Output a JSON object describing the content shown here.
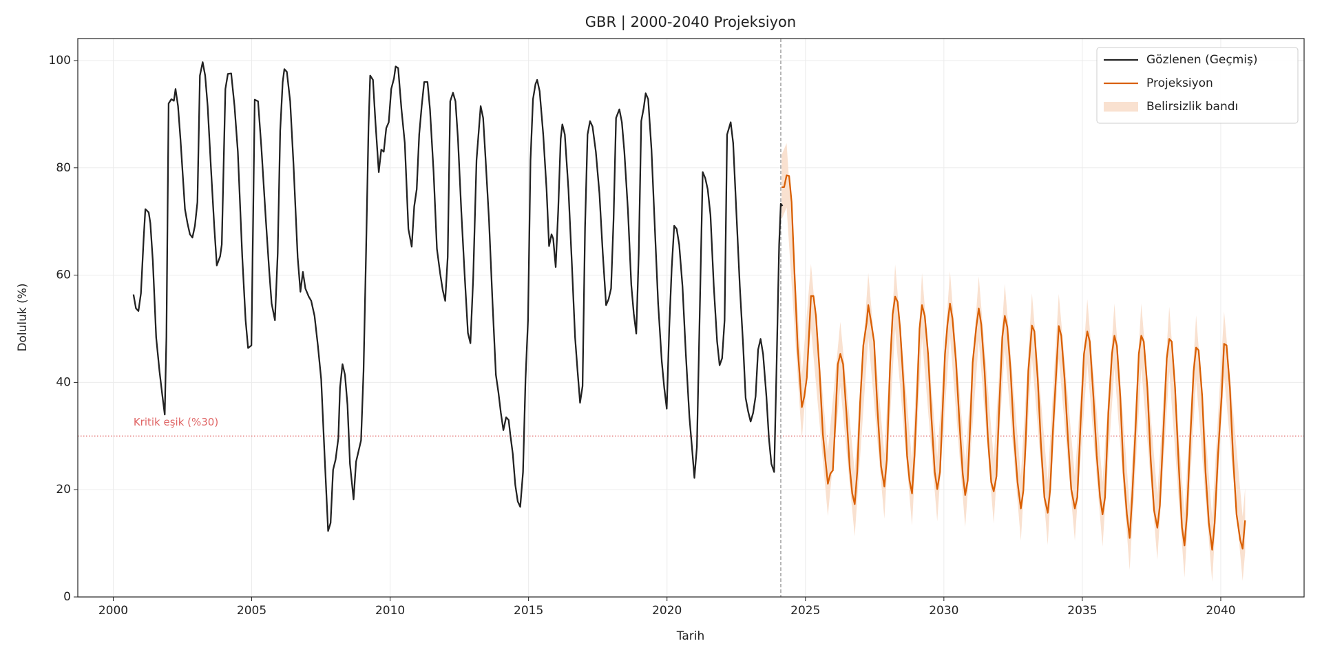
{
  "chart_data": {
    "type": "line",
    "title": "GBR | 2000-2040 Projeksiyon",
    "xlabel": "Tarih",
    "ylabel": "Doluluk (%)",
    "xlim": [
      1998.72,
      2043.01
    ],
    "ylim": [
      0,
      104.1
    ],
    "xticks": [
      2000,
      2005,
      2010,
      2015,
      2020,
      2025,
      2030,
      2035,
      2040
    ],
    "yticks": [
      0,
      20,
      40,
      60,
      80,
      100
    ],
    "grid": true,
    "legend": "upper right",
    "threshold": 30,
    "threshold_color": "#e06666",
    "threshold_label": "Kritik eşik (%30)",
    "split_x": 2024.11,
    "series": [
      {
        "name": "Gözlenen (Geçmiş)",
        "color": "#222222",
        "x": [
          2000.73,
          2000.82,
          2000.91,
          2001.0,
          2001.1,
          2001.16,
          2001.28,
          2001.34,
          2001.43,
          2001.55,
          2001.67,
          2001.77,
          2001.86,
          2001.92,
          2002.0,
          2002.1,
          2002.19,
          2002.25,
          2002.34,
          2002.43,
          2002.59,
          2002.68,
          2002.77,
          2002.86,
          2002.95,
          2003.04,
          2003.13,
          2003.23,
          2003.32,
          2003.41,
          2003.53,
          2003.65,
          2003.74,
          2003.86,
          2003.92,
          2004.05,
          2004.14,
          2004.26,
          2004.38,
          2004.5,
          2004.66,
          2004.78,
          2004.87,
          2004.99,
          2005.11,
          2005.23,
          2005.35,
          2005.51,
          2005.63,
          2005.72,
          2005.84,
          2005.94,
          2006.03,
          2006.12,
          2006.18,
          2006.27,
          2006.39,
          2006.51,
          2006.66,
          2006.76,
          2006.85,
          2006.94,
          2007.06,
          2007.15,
          2007.27,
          2007.39,
          2007.51,
          2007.64,
          2007.76,
          2007.85,
          2007.94,
          2008.03,
          2008.13,
          2008.19,
          2008.28,
          2008.37,
          2008.46,
          2008.55,
          2008.68,
          2008.77,
          2008.86,
          2008.95,
          2009.04,
          2009.13,
          2009.22,
          2009.28,
          2009.38,
          2009.47,
          2009.59,
          2009.68,
          2009.77,
          2009.86,
          2009.95,
          2010.04,
          2010.14,
          2010.2,
          2010.29,
          2010.41,
          2010.53,
          2010.66,
          2010.78,
          2010.87,
          2010.96,
          2011.05,
          2011.14,
          2011.23,
          2011.35,
          2011.44,
          2011.57,
          2011.69,
          2011.81,
          2011.9,
          2011.99,
          2012.08,
          2012.17,
          2012.27,
          2012.36,
          2012.45,
          2012.57,
          2012.69,
          2012.81,
          2012.9,
          2013.0,
          2013.12,
          2013.27,
          2013.36,
          2013.45,
          2013.57,
          2013.7,
          2013.82,
          2013.91,
          2014.0,
          2014.09,
          2014.19,
          2014.28,
          2014.34,
          2014.43,
          2014.52,
          2014.61,
          2014.7,
          2014.8,
          2014.89,
          2014.98,
          2015.07,
          2015.16,
          2015.25,
          2015.31,
          2015.4,
          2015.53,
          2015.65,
          2015.74,
          2015.83,
          2015.89,
          2015.98,
          2016.07,
          2016.16,
          2016.22,
          2016.31,
          2016.44,
          2016.56,
          2016.68,
          2016.77,
          2016.86,
          2016.95,
          2017.04,
          2017.13,
          2017.22,
          2017.31,
          2017.43,
          2017.56,
          2017.68,
          2017.8,
          2017.89,
          2017.98,
          2018.07,
          2018.16,
          2018.28,
          2018.37,
          2018.46,
          2018.59,
          2018.71,
          2018.8,
          2018.89,
          2018.98,
          2019.07,
          2019.16,
          2019.23,
          2019.32,
          2019.44,
          2019.56,
          2019.68,
          2019.81,
          2019.9,
          2019.99,
          2020.08,
          2020.17,
          2020.26,
          2020.35,
          2020.44,
          2020.56,
          2020.68,
          2020.81,
          2020.9,
          2020.99,
          2021.08,
          2021.17,
          2021.29,
          2021.38,
          2021.47,
          2021.57,
          2021.69,
          2021.81,
          2021.9,
          2021.99,
          2022.08,
          2022.17,
          2022.3,
          2022.39,
          2022.51,
          2022.63,
          2022.75,
          2022.84,
          2022.93,
          2023.02,
          2023.11,
          2023.2,
          2023.29,
          2023.38,
          2023.47,
          2023.59,
          2023.68,
          2023.77,
          2023.87,
          2023.96,
          2024.05,
          2024.11,
          2024.17
        ],
        "values": [
          56.4,
          53.8,
          53.3,
          56.6,
          67,
          72.3,
          71.7,
          69.7,
          62.6,
          48.4,
          42.1,
          37.7,
          34,
          48.4,
          92,
          92.8,
          92.5,
          94.7,
          91.5,
          85.2,
          72.3,
          69.7,
          67.6,
          67,
          69.2,
          73.6,
          97.2,
          99.7,
          97.2,
          91.5,
          79.9,
          68.9,
          61.8,
          63.5,
          65.7,
          94.7,
          97.5,
          97.6,
          91.5,
          83,
          63.4,
          51.6,
          46.4,
          46.9,
          92.7,
          92.4,
          83.8,
          70.4,
          61,
          54.7,
          51.6,
          64.1,
          86.9,
          96,
          98.4,
          97.9,
          92.4,
          80.7,
          63.4,
          56.9,
          60.6,
          57.5,
          56,
          55.2,
          52.4,
          46.9,
          40.6,
          25.6,
          12.3,
          13.8,
          23.7,
          25.6,
          29.6,
          39,
          43.4,
          41.4,
          35.8,
          24.8,
          18.2,
          25.2,
          27.2,
          29.2,
          42.1,
          64.1,
          87.7,
          97.2,
          96.4,
          88.5,
          79.2,
          83.4,
          83,
          87.4,
          88.5,
          94.7,
          96.7,
          98.9,
          98.6,
          90.9,
          84.6,
          68.6,
          65.3,
          72.8,
          76,
          86.2,
          91.5,
          96,
          96,
          90.9,
          79.2,
          64.9,
          60.2,
          57.2,
          55.2,
          63.4,
          92.4,
          94,
          92.4,
          85.4,
          72,
          60.2,
          49.2,
          47.3,
          59.4,
          81.4,
          91.5,
          89.3,
          81.4,
          70.4,
          54.7,
          41.4,
          38.2,
          34.3,
          31.1,
          33.5,
          33,
          30.3,
          26.7,
          20.9,
          17.8,
          16.8,
          23.3,
          40.6,
          51.6,
          81.4,
          92.8,
          95.6,
          96.4,
          94.3,
          86.2,
          76,
          65.4,
          67.6,
          66.8,
          61.5,
          72,
          85.4,
          88.1,
          86.2,
          76,
          62.6,
          48.4,
          42.1,
          36.2,
          39.3,
          68.9,
          86.2,
          88.7,
          87.7,
          83,
          75.2,
          64.1,
          54.4,
          55.5,
          57.5,
          70.4,
          89.3,
          90.9,
          88.5,
          83,
          72,
          58.2,
          52.8,
          49.1,
          64.1,
          88.7,
          91.2,
          93.9,
          92.8,
          83.4,
          68.9,
          54.7,
          44,
          39,
          35.1,
          50,
          61.3,
          69.2,
          68.6,
          65.7,
          57.9,
          45.3,
          33.5,
          28,
          22.2,
          28,
          50,
          79.2,
          78.1,
          76,
          71.2,
          57.9,
          47.6,
          43.2,
          44.5,
          51.6,
          86.2,
          88.5,
          84.6,
          71.2,
          57.9,
          46.9,
          37.1,
          34.6,
          32.7,
          34.3,
          37.4,
          46.1,
          48.1,
          45.3,
          37.4,
          29.6,
          24.8,
          23.3,
          43.7,
          65.7,
          73.3,
          72.9
        ]
      },
      {
        "name": "Projeksiyon",
        "color": "#d95f02",
        "x": [
          2024.14,
          2024.23,
          2024.32,
          2024.41,
          2024.5,
          2024.6,
          2024.72,
          2024.78,
          2024.87,
          2024.96,
          2025.05,
          2025.14,
          2025.2,
          2025.29,
          2025.38,
          2025.51,
          2025.63,
          2025.72,
          2025.81,
          2025.9,
          2025.99,
          2026.08,
          2026.17,
          2026.26,
          2026.36,
          2026.48,
          2026.6,
          2026.69,
          2026.78,
          2026.87,
          2026.97,
          2027.09,
          2027.21,
          2027.27,
          2027.36,
          2027.48,
          2027.6,
          2027.73,
          2027.85,
          2027.94,
          2028.06,
          2028.15,
          2028.24,
          2028.33,
          2028.42,
          2028.55,
          2028.67,
          2028.76,
          2028.85,
          2028.94,
          2029.03,
          2029.12,
          2029.21,
          2029.31,
          2029.43,
          2029.55,
          2029.67,
          2029.76,
          2029.86,
          2029.95,
          2030.04,
          2030.13,
          2030.22,
          2030.31,
          2030.44,
          2030.56,
          2030.68,
          2030.77,
          2030.86,
          2030.95,
          2031.04,
          2031.17,
          2031.26,
          2031.35,
          2031.47,
          2031.59,
          2031.71,
          2031.8,
          2031.9,
          2031.99,
          2032.11,
          2032.2,
          2032.29,
          2032.41,
          2032.53,
          2032.66,
          2032.78,
          2032.87,
          2032.96,
          2033.05,
          2033.18,
          2033.27,
          2033.39,
          2033.51,
          2033.63,
          2033.75,
          2033.84,
          2033.94,
          2034.06,
          2034.15,
          2034.24,
          2034.36,
          2034.48,
          2034.6,
          2034.73,
          2034.82,
          2034.94,
          2035.06,
          2035.18,
          2035.27,
          2035.4,
          2035.52,
          2035.64,
          2035.73,
          2035.82,
          2035.94,
          2036.07,
          2036.16,
          2036.25,
          2036.37,
          2036.49,
          2036.61,
          2036.71,
          2036.8,
          2036.92,
          2037.04,
          2037.13,
          2037.22,
          2037.35,
          2037.47,
          2037.59,
          2037.71,
          2037.8,
          2037.93,
          2038.05,
          2038.14,
          2038.23,
          2038.35,
          2038.48,
          2038.6,
          2038.69,
          2038.78,
          2038.9,
          2039.02,
          2039.11,
          2039.2,
          2039.33,
          2039.45,
          2039.57,
          2039.69,
          2039.78,
          2039.9,
          2040.03,
          2040.12,
          2040.21,
          2040.33,
          2040.45,
          2040.57,
          2040.7,
          2040.79,
          2040.88
        ],
        "values": [
          76.4,
          76.4,
          78.6,
          78.5,
          73.6,
          61,
          46.5,
          42.1,
          35.4,
          37.4,
          40.9,
          50,
          56.1,
          56.1,
          52.4,
          42.1,
          30.3,
          25.6,
          21.1,
          23,
          23.6,
          32.7,
          43.4,
          45.3,
          43.4,
          34.3,
          24.1,
          19.3,
          17.3,
          23.3,
          35.8,
          46.9,
          51.1,
          54.4,
          51.6,
          47.6,
          35.1,
          24.4,
          20.6,
          25.6,
          43.7,
          52.7,
          56,
          55,
          50,
          39,
          26.4,
          21.7,
          19.3,
          26.4,
          37.4,
          50,
          54.4,
          52.4,
          45.3,
          33.5,
          23.3,
          20.1,
          23.3,
          34.3,
          45.3,
          50.8,
          54.7,
          51.9,
          43.7,
          32.7,
          23,
          19,
          21.7,
          32,
          43.7,
          50.3,
          53.8,
          50.8,
          42.1,
          29.6,
          21.4,
          19.7,
          22.5,
          34.3,
          48.4,
          52.4,
          50.3,
          42.1,
          30.3,
          21.4,
          16.5,
          19.8,
          29.6,
          42.1,
          50.6,
          49.5,
          40.6,
          28,
          18.6,
          15.7,
          20.1,
          31.1,
          42.1,
          50.5,
          48.7,
          40.6,
          29.6,
          20.1,
          16.5,
          18.6,
          32.7,
          45.3,
          49.5,
          47.6,
          37.4,
          26.4,
          18.6,
          15.4,
          18.6,
          34.3,
          45.3,
          48.7,
          46.8,
          37.4,
          23.3,
          15.4,
          11,
          18.6,
          31.1,
          45.3,
          48.7,
          47.6,
          39,
          25.6,
          16.2,
          12.9,
          17,
          31.1,
          44.5,
          48.1,
          47.6,
          39,
          24.8,
          13,
          9.6,
          15.4,
          29.6,
          42.1,
          46.5,
          46,
          37.4,
          23.3,
          13.8,
          8.8,
          13.8,
          26.4,
          37.4,
          47.2,
          46.9,
          39,
          25.6,
          15.4,
          10.7,
          9,
          14.3
        ]
      },
      {
        "name": "Belirsizlik bandı",
        "color": "#f9e1d0",
        "x": [
          2024.14,
          2024.32,
          2024.87,
          2025.2,
          2025.81,
          2026.26,
          2026.78,
          2027.27,
          2027.85,
          2028.24,
          2028.85,
          2029.21,
          2029.76,
          2030.22,
          2030.77,
          2031.26,
          2031.8,
          2032.2,
          2032.78,
          2033.18,
          2033.75,
          2034.15,
          2034.73,
          2035.18,
          2035.73,
          2036.16,
          2036.71,
          2037.13,
          2037.71,
          2038.14,
          2038.69,
          2039.11,
          2039.69,
          2040.12,
          2040.79,
          2040.88
        ],
        "lower": [
          70.4,
          72.6,
          29.4,
          50.1,
          15.1,
          39.3,
          11.3,
          48.4,
          14.6,
          50,
          13.3,
          48.4,
          14.1,
          48.7,
          13,
          47.8,
          13.7,
          46.4,
          10.5,
          44.6,
          9.7,
          44.5,
          10.5,
          43.5,
          9.4,
          42.7,
          5,
          42.7,
          6.9,
          42.1,
          3.6,
          40.5,
          2.8,
          41.2,
          3,
          8.3
        ],
        "upper": [
          82.4,
          84.6,
          41.4,
          62.1,
          27.1,
          51.3,
          23.3,
          60.4,
          26.6,
          62,
          25.3,
          60.4,
          26.1,
          60.7,
          25,
          59.8,
          25.7,
          58.4,
          22.5,
          56.6,
          21.7,
          56.5,
          22.5,
          55.5,
          21.4,
          54.7,
          17,
          54.7,
          18.9,
          54.1,
          15.6,
          52.5,
          14.8,
          53.2,
          15,
          20.3
        ]
      }
    ]
  }
}
